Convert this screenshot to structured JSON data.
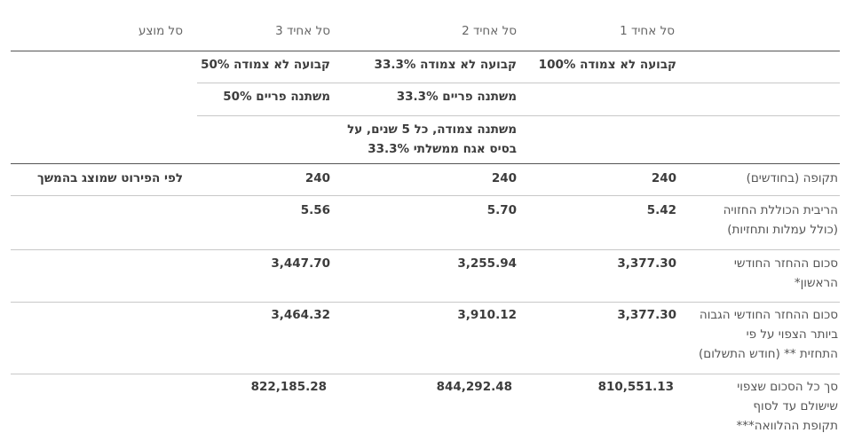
{
  "header": {
    "col1": "סל אחיד 1",
    "col2": "סל אחיד 2",
    "col3": "סל אחיד 3",
    "col4": "סל מוצע"
  },
  "tracks": [
    {
      "col1": "קבועה לא צמודה 100%",
      "col2": "קבועה לא צמודה 33.3%",
      "col3": "קבועה לא צמודה 50%"
    },
    {
      "col2": "משתנה פריים 33.3%",
      "col3": "משתנה פריים 50%"
    },
    {
      "col2_line1": "משתנה צמודה, כל 5 שנים, על",
      "col2_line2": "בסיס אגח ממשלתי 33.3%"
    }
  ],
  "period": {
    "label": "תקופה (בחודשים)",
    "col1": "240",
    "col2": "240",
    "col3": "240",
    "col4": "לפי הפירוט  שמוצג בהמשך"
  },
  "rate": {
    "label_line1": "הריבית הכוללת החזויה",
    "label_line2": "(כולל עמלות ותחזיות)",
    "col1": "5.42",
    "col2": "5.70",
    "col3": "5.56"
  },
  "first_payment": {
    "label_line1": "סכום ההחזר החודשי",
    "label_line2": "הראשון*",
    "col1": "3,377.30",
    "col2": "3,255.94",
    "col3": "3,447.70"
  },
  "max_payment": {
    "label_line1": "סכום ההחזר החודשי הגבוה",
    "label_line2": "ביותר הצפוי על פי",
    "label_line3": "התחזית ** (חודש התשלום)",
    "col1": "3,377.30",
    "col2": "3,910.12",
    "col3": "3,464.32"
  },
  "total": {
    "label_line1": "סך כל הסכום שצפוי",
    "label_line2": "שישולם עד לסוף",
    "label_line3": "תקופת ההלוואה***",
    "col1": "810,551.13",
    "col2": "844,292.48",
    "col3": "822,185.28"
  }
}
